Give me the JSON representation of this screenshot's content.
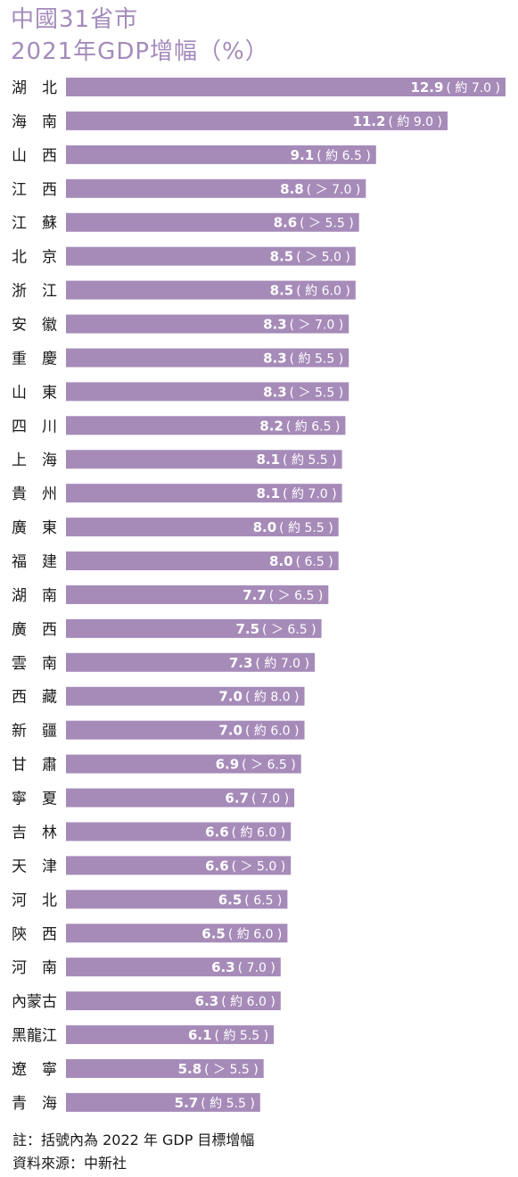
{
  "title_line1": "中國31省市",
  "title_line2": "2021年GDP增幅（%）",
  "note": "註：括號內為 2022 年 GDP 目標增幅",
  "source": "資料來源：中新社",
  "colors": {
    "bar": "#a68bb9",
    "title": "#a48bbb",
    "bar_text": "#ffffff"
  },
  "chart_data": {
    "type": "bar",
    "orientation": "horizontal",
    "title": "中國31省市 2021年GDP增幅（%）",
    "xlim": [
      0,
      12.9
    ],
    "grid": false,
    "categories": [
      "湖　北",
      "海　南",
      "山　西",
      "江　西",
      "江　蘇",
      "北　京",
      "浙　江",
      "安　徽",
      "重　慶",
      "山　東",
      "四　川",
      "上　海",
      "貴　州",
      "廣　東",
      "福　建",
      "湖　南",
      "廣　西",
      "雲　南",
      "西　藏",
      "新　疆",
      "甘　肅",
      "寧　夏",
      "吉　林",
      "天　津",
      "河　北",
      "陝　西",
      "河　南",
      "內蒙古",
      "黑龍江",
      "遼　寧",
      "青　海"
    ],
    "values": [
      12.9,
      11.2,
      9.1,
      8.8,
      8.6,
      8.5,
      8.5,
      8.3,
      8.3,
      8.3,
      8.2,
      8.1,
      8.1,
      8.0,
      8.0,
      7.7,
      7.5,
      7.3,
      7.0,
      7.0,
      6.9,
      6.7,
      6.6,
      6.6,
      6.5,
      6.5,
      6.3,
      6.3,
      6.1,
      5.8,
      5.7
    ],
    "value_labels": [
      "12.9",
      "11.2",
      "9.1",
      "8.8",
      "8.6",
      "8.5",
      "8.5",
      "8.3",
      "8.3",
      "8.3",
      "8.2",
      "8.1",
      "8.1",
      "8.0",
      "8.0",
      "7.7",
      "7.5",
      "7.3",
      "7.0",
      "7.0",
      "6.9",
      "6.7",
      "6.6",
      "6.6",
      "6.5",
      "6.5",
      "6.3",
      "6.3",
      "6.1",
      "5.8",
      "5.7"
    ],
    "target_labels": [
      "( 約 7.0 )",
      "( 約 9.0 )",
      "( 約 6.5 )",
      "( ＞ 7.0 )",
      "( ＞ 5.5 )",
      "( ＞ 5.0 )",
      "( 約 6.0 )",
      "( ＞ 7.0 )",
      "( 約 5.5 )",
      "( ＞ 5.5 )",
      "( 約 6.5 )",
      "( 約 5.5 )",
      "( 約 7.0 )",
      "( 約 5.5 )",
      "( 6.5 )",
      "( ＞ 6.5 )",
      "( ＞ 6.5 )",
      "( 約 7.0 )",
      "( 約 8.0 )",
      "( 約 6.0 )",
      "( ＞ 6.5 )",
      "( 7.0 )",
      "( 約 6.0 )",
      "( ＞ 5.0 )",
      "( 6.5 )",
      "( 約 6.0 )",
      "( 7.0 )",
      "( 約 6.0 )",
      "( 約 5.5 )",
      "( ＞ 5.5 )",
      "( 約 5.5 )"
    ]
  }
}
